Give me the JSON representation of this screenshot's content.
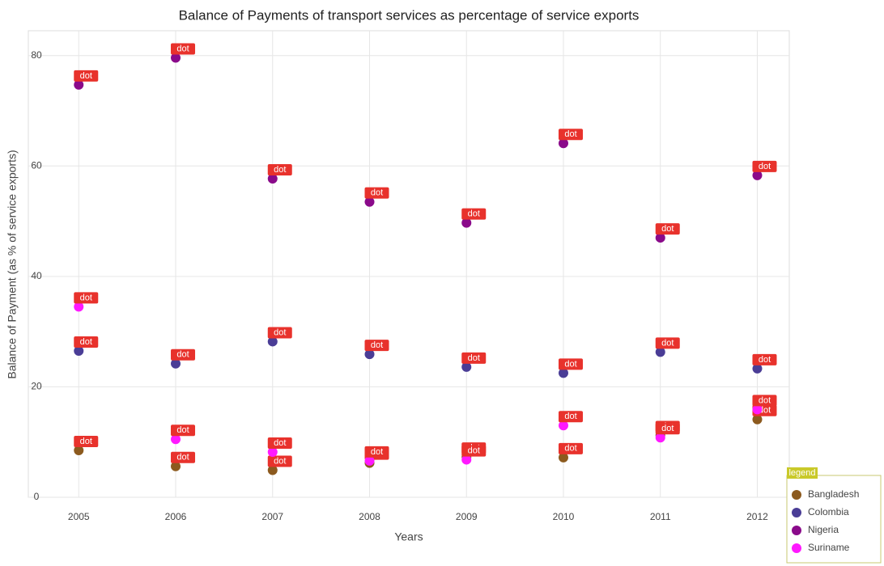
{
  "chart_data": {
    "type": "scatter",
    "title": "Balance of Payments of transport services as percentage of service exports",
    "xlabel": "Years",
    "ylabel": "Balance of Payment (as % of service exports)",
    "x": [
      2005,
      2006,
      2007,
      2008,
      2009,
      2010,
      2011,
      2012
    ],
    "series": [
      {
        "name": "Bangladesh",
        "color": "#8c5a1e",
        "values": [
          8.5,
          5.6,
          4.9,
          6.2,
          7.3,
          7.2,
          11.2,
          14.1
        ]
      },
      {
        "name": "Colombia",
        "color": "#4a3d96",
        "values": [
          26.5,
          24.2,
          28.2,
          25.9,
          23.6,
          22.5,
          26.3,
          23.3
        ]
      },
      {
        "name": "Nigeria",
        "color": "#8a0a8a",
        "values": [
          74.7,
          79.6,
          57.7,
          53.5,
          49.7,
          64.1,
          47.0,
          58.3
        ]
      },
      {
        "name": "Suriname",
        "color": "#ff19ff",
        "values": [
          34.5,
          10.5,
          8.2,
          6.6,
          6.8,
          13.0,
          10.8,
          15.9
        ]
      }
    ],
    "xlim": [
      2004.48,
      2012.33
    ],
    "xticks": [
      2005,
      2006,
      2007,
      2008,
      2009,
      2010,
      2011,
      2012
    ],
    "ylim": [
      0,
      84.5
    ],
    "yticks": [
      0,
      20,
      40,
      60,
      80
    ],
    "grid": true,
    "legend": "lower right",
    "marker_tag": "dot",
    "legend_tag": "legend"
  }
}
